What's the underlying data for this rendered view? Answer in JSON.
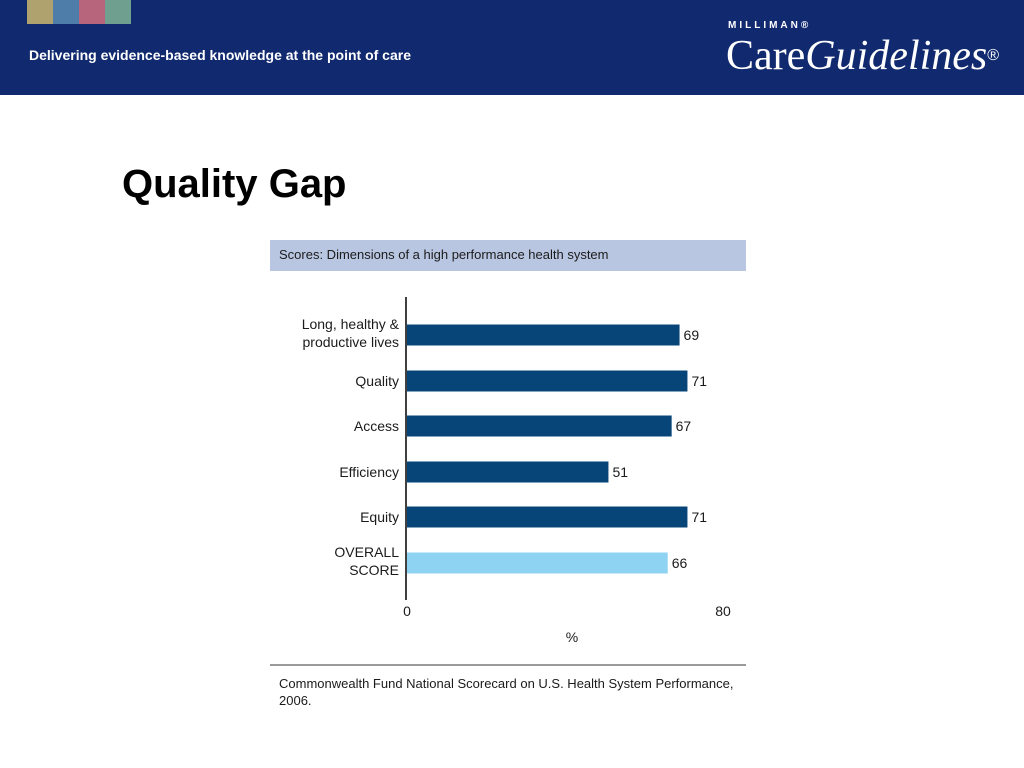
{
  "header": {
    "tagline": "Delivering evidence-based knowledge at the point of care",
    "logo_top": "MILLIMAN®",
    "logo_care": "Care",
    "logo_guidelines": "Guidelines",
    "logo_reg": "®",
    "swatch_colors": [
      "#b0a26e",
      "#4f7daa",
      "#b6657d",
      "#6e9f8f"
    ]
  },
  "slide": {
    "title": "Quality Gap"
  },
  "colors": {
    "banner": "#112a6f",
    "bar": "#074478",
    "overall_bar": "#8fd3f3"
  },
  "chart_data": {
    "type": "bar",
    "orientation": "horizontal",
    "title": "Scores: Dimensions of a high performance health system",
    "categories": [
      [
        "Long, healthy &",
        "productive lives"
      ],
      [
        "Quality"
      ],
      [
        "Access"
      ],
      [
        "Efficiency"
      ],
      [
        "Equity"
      ],
      [
        "OVERALL",
        "SCORE"
      ]
    ],
    "values": [
      69,
      71,
      67,
      51,
      71,
      66
    ],
    "highlight_index": 5,
    "xlabel": "%",
    "xlim": [
      0,
      80
    ],
    "xticks": [
      "0",
      "80"
    ],
    "source": "Commonwealth Fund National Scorecard on U.S. Health System Performance, 2006."
  }
}
